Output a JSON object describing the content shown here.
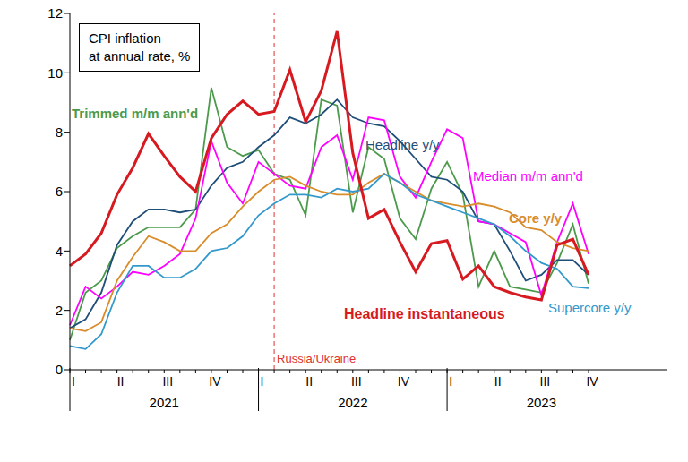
{
  "chart_data": {
    "type": "line",
    "title": [
      "CPI inflation",
      "at annual rate, %"
    ],
    "categories": [
      "I",
      null,
      null,
      "II",
      null,
      null,
      "III",
      null,
      null,
      "IV",
      null,
      null,
      "I",
      null,
      null,
      "II",
      null,
      null,
      "III",
      null,
      null,
      "IV",
      null,
      null,
      "I",
      null,
      null,
      "II",
      null,
      null,
      "III",
      null,
      null,
      "IV"
    ],
    "years": [
      "2021",
      "2022",
      "2023"
    ],
    "ylim": [
      0,
      12
    ],
    "yticks": [
      0,
      2,
      4,
      6,
      8,
      10,
      12
    ],
    "series": [
      {
        "name": "Trimmed m/m ann'd",
        "color": "#4c9a4c",
        "values": [
          1.0,
          2.6,
          3.0,
          4.1,
          4.5,
          4.8,
          4.8,
          4.8,
          5.4,
          9.5,
          7.5,
          7.2,
          7.4,
          6.6,
          6.4,
          5.2,
          9.1,
          8.9,
          5.3,
          7.5,
          7.1,
          5.1,
          4.4,
          6.1,
          7.0,
          5.9,
          2.8,
          4.0,
          2.8,
          2.7,
          2.6,
          3.6,
          4.9,
          2.9
        ]
      },
      {
        "name": "Headline y/y",
        "color": "#1f4e79",
        "values": [
          1.4,
          1.7,
          2.6,
          4.2,
          5.0,
          5.4,
          5.4,
          5.3,
          5.4,
          6.2,
          6.8,
          7.0,
          7.5,
          7.9,
          8.5,
          8.3,
          8.6,
          9.1,
          8.5,
          8.3,
          8.2,
          7.7,
          7.1,
          6.5,
          6.4,
          6.0,
          5.0,
          4.9,
          4.0,
          3.0,
          3.2,
          3.7,
          3.7,
          3.2
        ]
      },
      {
        "name": "Median m/m ann'd",
        "color": "#ff00ff",
        "values": [
          1.5,
          2.8,
          2.4,
          2.8,
          3.3,
          3.2,
          3.5,
          3.9,
          5.1,
          7.7,
          6.3,
          5.6,
          7.0,
          6.6,
          6.2,
          6.1,
          7.5,
          7.9,
          6.4,
          8.5,
          8.4,
          6.5,
          5.8,
          7.0,
          8.1,
          7.8,
          5.0,
          4.9,
          4.6,
          4.3,
          2.5,
          4.3,
          5.6,
          3.9
        ]
      },
      {
        "name": "Core y/y",
        "color": "#d98c2b",
        "values": [
          1.4,
          1.3,
          1.6,
          3.0,
          3.8,
          4.5,
          4.3,
          4.0,
          4.0,
          4.6,
          4.9,
          5.5,
          6.0,
          6.4,
          6.5,
          6.2,
          6.0,
          5.9,
          5.9,
          6.3,
          6.6,
          6.3,
          6.0,
          5.7,
          5.6,
          5.5,
          5.6,
          5.5,
          5.3,
          4.8,
          4.7,
          4.3,
          4.1,
          4.0
        ]
      },
      {
        "name": "Supercore y/y",
        "color": "#3399cc",
        "values": [
          0.8,
          0.7,
          1.2,
          2.6,
          3.5,
          3.5,
          3.1,
          3.1,
          3.4,
          4.0,
          4.1,
          4.5,
          5.2,
          5.6,
          5.9,
          5.9,
          5.8,
          6.1,
          6.0,
          6.1,
          6.6,
          6.3,
          5.9,
          5.7,
          5.5,
          5.3,
          5.1,
          4.9,
          4.5,
          4.0,
          3.6,
          3.4,
          2.8,
          2.75
        ]
      },
      {
        "name": "Headline instantaneous",
        "color": "#d71920",
        "values": [
          3.5,
          3.9,
          4.6,
          5.9,
          6.8,
          7.95,
          7.2,
          6.5,
          6.0,
          7.8,
          8.6,
          9.05,
          8.6,
          8.7,
          10.1,
          8.35,
          9.4,
          11.4,
          7.3,
          5.1,
          5.4,
          4.3,
          3.3,
          4.25,
          4.35,
          3.05,
          3.5,
          2.8,
          2.6,
          2.45,
          2.35,
          4.2,
          4.4,
          3.2
        ]
      }
    ],
    "annotations": [
      {
        "text": "Russia/Ukraine",
        "x": 13,
        "color": "#e03030",
        "line_style": "dashed"
      }
    ]
  }
}
